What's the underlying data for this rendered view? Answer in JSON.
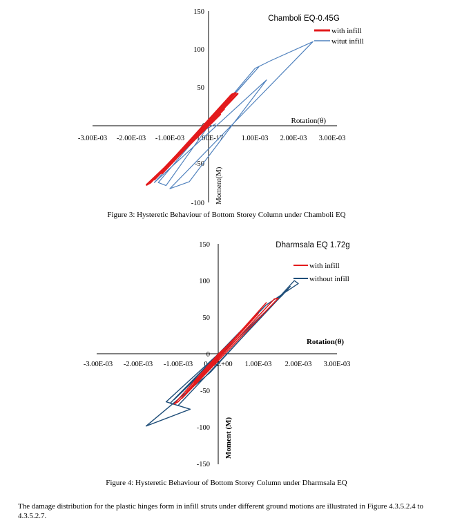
{
  "captions": {
    "fig3": "Figure 3: Hysteretic Behaviour of Bottom Storey Column under Chamboli EQ",
    "fig4": "Figure 4: Hysteretic Behaviour of Bottom Storey Column under Dharmsala EQ"
  },
  "body_text": "The damage distribution for the plastic hinges form in infill struts under different ground motions are illustrated in Figure 4.3.5.2.4 to 4.3.5.2.7.",
  "chart_data": [
    {
      "type": "line",
      "title": "Chamboli EQ-0.45G",
      "xlabel": "Rotation(θ)",
      "ylabel": "Moment(M)",
      "xlim": [
        -0.003,
        0.003
      ],
      "ylim": [
        -100,
        150
      ],
      "x_tick_labels": [
        "-3.00E-03",
        "-2.00E-03",
        "-1.00E-03",
        "-1.00E-17",
        "1.00E-03",
        "2.00E-03",
        "3.00E-03"
      ],
      "y_tick_labels": [
        "-100",
        "-50",
        "0",
        "50",
        "100",
        "150"
      ],
      "legend_position": "top-right",
      "series": [
        {
          "name": "witut infill",
          "color": "#4f81bd",
          "points": [
            [
              0,
              0
            ],
            [
              -0.0011,
              -78
            ],
            [
              -0.0013,
              -74
            ],
            [
              0.0012,
              75
            ],
            [
              0.0016,
              85
            ],
            [
              0.0027,
              110
            ],
            [
              -0.001,
              -82
            ],
            [
              -0.0005,
              -73
            ],
            [
              0.0015,
              60
            ],
            [
              -0.0014,
              -74
            ],
            [
              0.0013,
              77
            ],
            [
              -0.0002,
              -8
            ],
            [
              0.0002,
              3
            ]
          ]
        },
        {
          "name": "with infill",
          "color": "#e31a1c",
          "points": [
            [
              0,
              0
            ],
            [
              -0.0016,
              -77
            ],
            [
              -0.0015,
              -74
            ],
            [
              0.0007,
              43
            ],
            [
              0.0006,
              41
            ],
            [
              -0.0014,
              -70
            ],
            [
              0.00075,
              42
            ],
            [
              -0.0012,
              -62
            ],
            [
              0.0006,
              38
            ],
            [
              -0.0009,
              -44
            ],
            [
              0.0004,
              22
            ],
            [
              -0.0006,
              -30
            ],
            [
              0.0003,
              15
            ],
            [
              0,
              0
            ]
          ]
        }
      ]
    },
    {
      "type": "line",
      "title": "Dharmsala EQ 1.72g",
      "xlabel": "Rotation(θ)",
      "ylabel": "Moment (M)",
      "xlim": [
        -0.003,
        0.003
      ],
      "ylim": [
        -150,
        150
      ],
      "x_tick_labels": [
        "-3.00E-03",
        "-2.00E-03",
        "-1.00E-03",
        "0.00E+00",
        "1.00E-03",
        "2.00E-03",
        "3.00E-03"
      ],
      "y_tick_labels": [
        "-150",
        "-100",
        "-50",
        "0",
        "50",
        "100",
        "150"
      ],
      "legend_position": "top-right",
      "series": [
        {
          "name": "without infill",
          "color": "#1f4e79",
          "points": [
            [
              0,
              0
            ],
            [
              -0.0012,
              -60
            ],
            [
              -0.0013,
              -65
            ],
            [
              -0.0007,
              -75
            ],
            [
              -0.0018,
              -98
            ],
            [
              -0.0002,
              -25
            ],
            [
              0.0019,
              100
            ],
            [
              0.002,
              96
            ],
            [
              0.0012,
              67
            ],
            [
              -0.0012,
              -67
            ],
            [
              -0.001,
              -70
            ],
            [
              0.0018,
              92
            ],
            [
              0.0016,
              80
            ],
            [
              -0.0011,
              -62
            ],
            [
              0.0009,
              50
            ],
            [
              0.0005,
              28
            ],
            [
              -0.0008,
              -45
            ],
            [
              0,
              0
            ]
          ]
        },
        {
          "name": "with infill",
          "color": "#e31a1c",
          "points": [
            [
              0,
              0
            ],
            [
              -0.0011,
              -68
            ],
            [
              -0.001,
              -65
            ],
            [
              0.0014,
              75
            ],
            [
              0.0015,
              76
            ],
            [
              -0.0009,
              -60
            ],
            [
              0.0012,
              70
            ],
            [
              -0.0008,
              -52
            ],
            [
              0.001,
              55
            ],
            [
              -0.0006,
              -38
            ],
            [
              0.0007,
              38
            ],
            [
              -0.0003,
              -18
            ],
            [
              0.0003,
              15
            ],
            [
              0,
              0
            ]
          ]
        }
      ]
    }
  ]
}
